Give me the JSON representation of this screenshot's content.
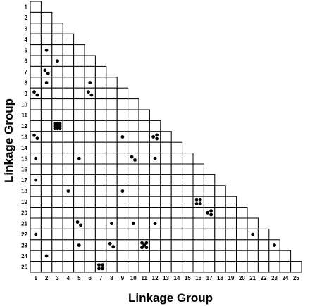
{
  "chart_data": {
    "type": "scatter",
    "xlabel": "Linkage Group",
    "ylabel": "Linkage Group",
    "groups": [
      "1",
      "2",
      "3",
      "4",
      "5",
      "6",
      "7",
      "8",
      "9",
      "10",
      "11",
      "12",
      "13",
      "14",
      "15",
      "16",
      "17",
      "18",
      "19",
      "20",
      "21",
      "22",
      "23",
      "24",
      "25"
    ],
    "grid": "lower-triangular",
    "cells": [
      {
        "row": 5,
        "col": 2,
        "count": 1
      },
      {
        "row": 6,
        "col": 3,
        "count": 1
      },
      {
        "row": 7,
        "col": 2,
        "count": 2
      },
      {
        "row": 8,
        "col": 2,
        "count": 1
      },
      {
        "row": 8,
        "col": 6,
        "count": 1
      },
      {
        "row": 9,
        "col": 1,
        "count": 2
      },
      {
        "row": 9,
        "col": 6,
        "count": 2
      },
      {
        "row": 12,
        "col": 3,
        "count": 9
      },
      {
        "row": 13,
        "col": 1,
        "count": 2
      },
      {
        "row": 13,
        "col": 9,
        "count": 1
      },
      {
        "row": 13,
        "col": 12,
        "count": 3
      },
      {
        "row": 15,
        "col": 1,
        "count": 1
      },
      {
        "row": 15,
        "col": 5,
        "count": 1
      },
      {
        "row": 15,
        "col": 10,
        "count": 2
      },
      {
        "row": 15,
        "col": 12,
        "count": 1
      },
      {
        "row": 17,
        "col": 1,
        "count": 1
      },
      {
        "row": 18,
        "col": 4,
        "count": 1
      },
      {
        "row": 18,
        "col": 9,
        "count": 1
      },
      {
        "row": 19,
        "col": 16,
        "count": 4
      },
      {
        "row": 20,
        "col": 17,
        "count": 3
      },
      {
        "row": 21,
        "col": 5,
        "count": 2
      },
      {
        "row": 21,
        "col": 8,
        "count": 1
      },
      {
        "row": 21,
        "col": 10,
        "count": 1
      },
      {
        "row": 21,
        "col": 12,
        "count": 1
      },
      {
        "row": 22,
        "col": 1,
        "count": 1
      },
      {
        "row": 22,
        "col": 21,
        "count": 1
      },
      {
        "row": 23,
        "col": 5,
        "count": 1
      },
      {
        "row": 23,
        "col": 8,
        "count": 2
      },
      {
        "row": 23,
        "col": 11,
        "count": 5
      },
      {
        "row": 23,
        "col": 23,
        "count": 1
      },
      {
        "row": 24,
        "col": 2,
        "count": 1
      },
      {
        "row": 25,
        "col": 7,
        "count": 4
      }
    ]
  }
}
